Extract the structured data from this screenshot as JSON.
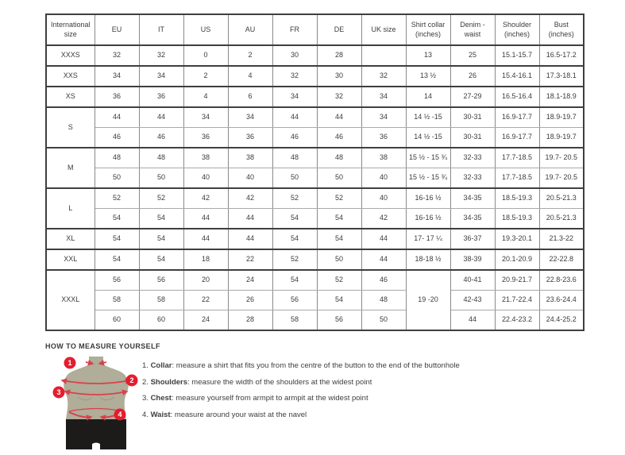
{
  "colors": {
    "accent_red": "#e31e2e",
    "torso_khaki": "#b0ad98",
    "shorts_black": "#1d1b19",
    "border_dark": "#3f3f3f",
    "border_light": "#a9a9a9",
    "text": "#3c3c3b"
  },
  "table": {
    "headers": [
      "International size",
      "EU",
      "IT",
      "US",
      "AU",
      "FR",
      "DE",
      "UK size",
      "Shirt collar (inches)",
      "Denim - waist",
      "Shoulder (inches)",
      "Bust (inches)"
    ],
    "groups": [
      {
        "size": "XXXS",
        "rows": [
          [
            "32",
            "32",
            "0",
            "2",
            "30",
            "28",
            "",
            "13",
            "25",
            "15.1-15.7",
            "16.5-17.2"
          ]
        ]
      },
      {
        "size": "XXS",
        "rows": [
          [
            "34",
            "34",
            "2",
            "4",
            "32",
            "30",
            "32",
            "13 ½",
            "26",
            "15.4-16.1",
            "17.3-18.1"
          ]
        ]
      },
      {
        "size": "XS",
        "rows": [
          [
            "36",
            "36",
            "4",
            "6",
            "34",
            "32",
            "34",
            "14",
            "27-29",
            "16.5-16.4",
            "18.1-18.9"
          ]
        ]
      },
      {
        "size": "S",
        "rows": [
          [
            "44",
            "44",
            "34",
            "34",
            "44",
            "44",
            "34",
            "14 ½ -15",
            "30-31",
            "16.9-17.7",
            "18.9-19.7"
          ],
          [
            "46",
            "46",
            "36",
            "36",
            "46",
            "46",
            "36",
            "14 ½ -15",
            "30-31",
            "16.9-17.7",
            "18.9-19.7"
          ]
        ]
      },
      {
        "size": "M",
        "rows": [
          [
            "48",
            "48",
            "38",
            "38",
            "48",
            "48",
            "38",
            "15 ½ - 15 ¾",
            "32-33",
            "17.7-18.5",
            "19.7- 20.5"
          ],
          [
            "50",
            "50",
            "40",
            "40",
            "50",
            "50",
            "40",
            "15 ½ - 15 ¾",
            "32-33",
            "17.7-18.5",
            "19.7- 20.5"
          ]
        ]
      },
      {
        "size": "L",
        "rows": [
          [
            "52",
            "52",
            "42",
            "42",
            "52",
            "52",
            "40",
            "16-16 ½",
            "34-35",
            "18.5-19.3",
            "20.5-21.3"
          ],
          [
            "54",
            "54",
            "44",
            "44",
            "54",
            "54",
            "42",
            "16-16 ½",
            "34-35",
            "18.5-19.3",
            "20.5-21.3"
          ]
        ]
      },
      {
        "size": "XL",
        "rows": [
          [
            "54",
            "54",
            "44",
            "44",
            "54",
            "54",
            "44",
            "17- 17 ¼",
            "36-37",
            "19.3-20.1",
            "21.3-22"
          ]
        ]
      },
      {
        "size": "XXL",
        "rows": [
          [
            "54",
            "54",
            "18",
            "22",
            "52",
            "50",
            "44",
            "18-18 ½",
            "38-39",
            "20.1-20.9",
            "22-22.8"
          ]
        ]
      },
      {
        "size": "XXXL",
        "collar": "19 -20",
        "rows": [
          [
            "56",
            "56",
            "20",
            "24",
            "54",
            "52",
            "46",
            "40-41",
            "20.9-21.7",
            "22.8-23.6"
          ],
          [
            "58",
            "58",
            "22",
            "26",
            "56",
            "54",
            "48",
            "42-43",
            "21.7-22.4",
            "23.6-24.4"
          ],
          [
            "60",
            "60",
            "24",
            "28",
            "58",
            "56",
            "50",
            "44",
            "22.4-23.2",
            "24.4-25.2"
          ]
        ]
      }
    ]
  },
  "measure": {
    "heading": "HOW TO MEASURE YOURSELF",
    "steps": [
      {
        "num": "1. ",
        "label": "Collar",
        "text": ": measure a shirt that fits you from the centre of the button to the end of the buttonhole"
      },
      {
        "num": "2. ",
        "label": "Shoulders",
        "text": ": measure the width of the shoulders at the widest point"
      },
      {
        "num": "3. ",
        "label": "Chest",
        "text": ": measure yourself from armpit to armpit at the widest point"
      },
      {
        "num": "4. ",
        "label": "Waist",
        "text": ": measure around your waist at the navel"
      }
    ],
    "figure_markers": [
      "1",
      "2",
      "3",
      "4"
    ]
  }
}
